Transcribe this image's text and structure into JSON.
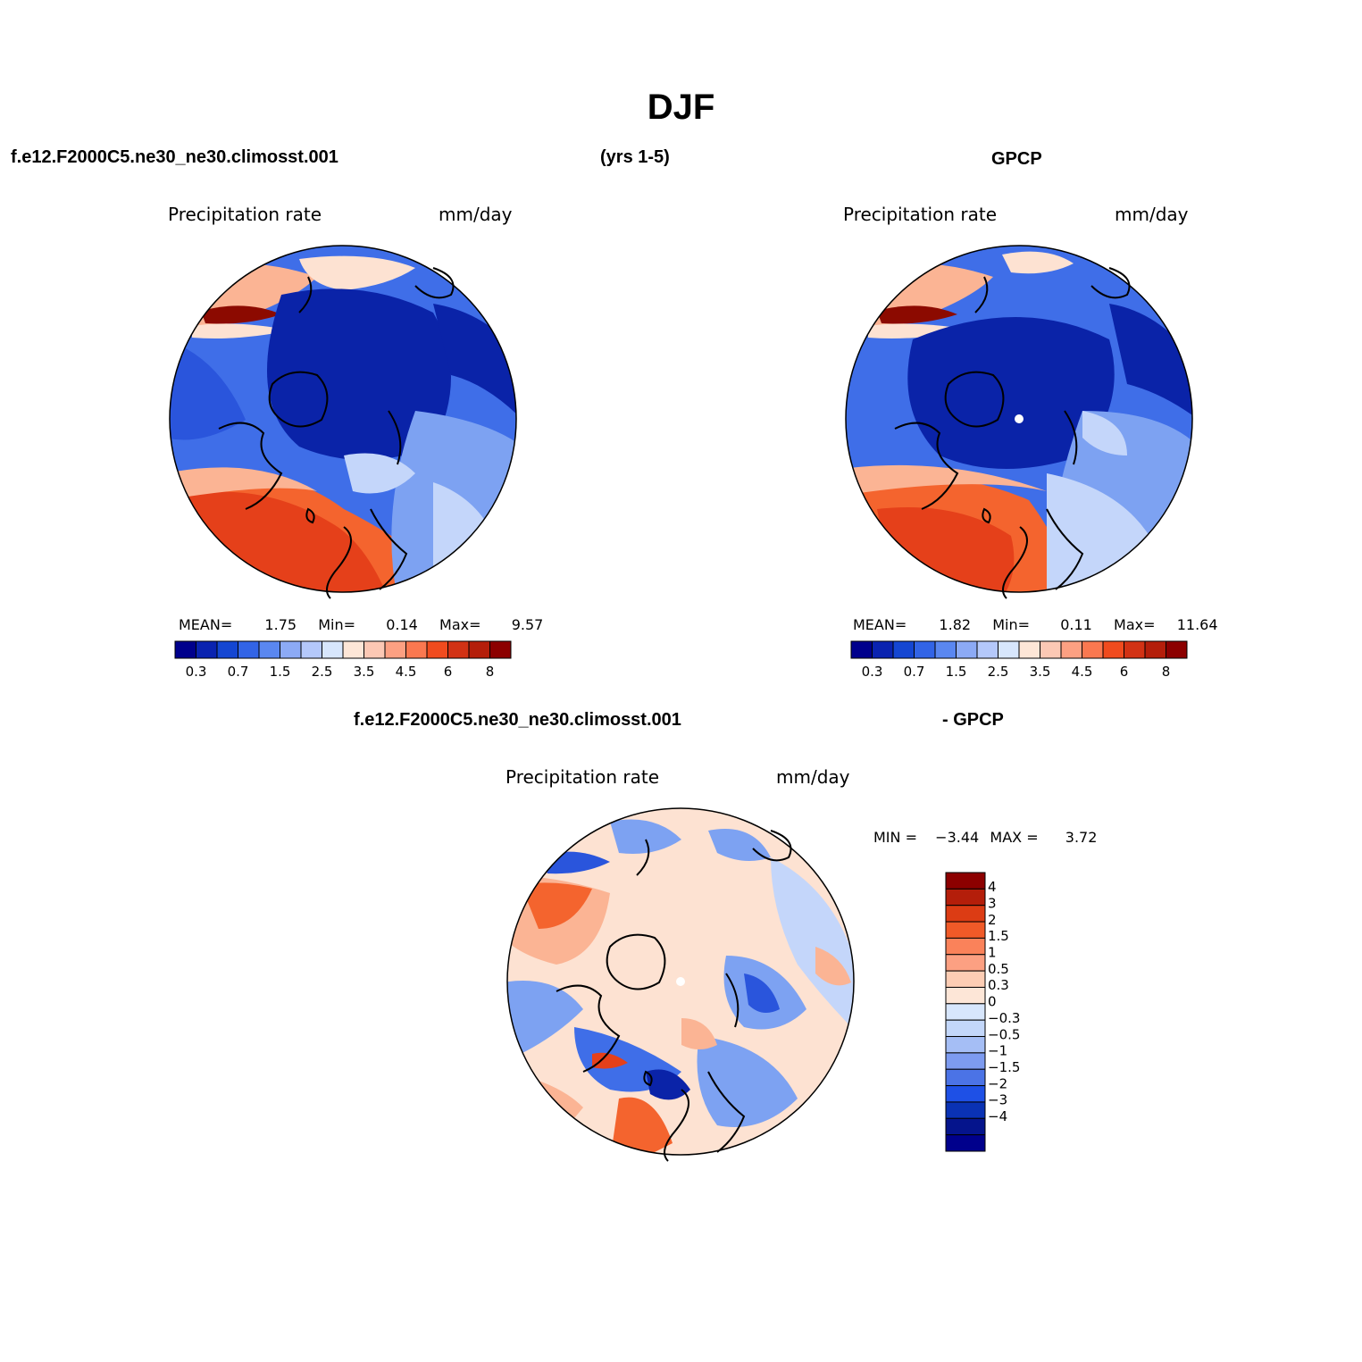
{
  "title": "DJF",
  "header": {
    "case_name": "f.e12.F2000C5.ne30_ne30.climosst.001",
    "years": "(yrs 1-5)",
    "obs_name": "GPCP"
  },
  "panels": [
    {
      "id": "model",
      "variable": "Precipitation rate",
      "units": "mm/day",
      "stats": {
        "mean_label": "MEAN=",
        "mean": "1.75",
        "min_label": "Min=",
        "min": "0.14",
        "max_label": "Max=",
        "max": "9.57"
      }
    },
    {
      "id": "obs",
      "variable": "Precipitation rate",
      "units": "mm/day",
      "stats": {
        "mean_label": "MEAN=",
        "mean": "1.82",
        "min_label": "Min=",
        "min": "0.11",
        "max_label": "Max=",
        "max": "11.64"
      }
    }
  ],
  "colorbar_abs": {
    "colors": [
      "#00008c",
      "#0a23b0",
      "#1446d2",
      "#3264e6",
      "#5a87f0",
      "#8caaf5",
      "#b4c8fa",
      "#d7e6fc",
      "#fde6d7",
      "#fcc8b4",
      "#fca082",
      "#fa7850",
      "#f04b1e",
      "#d23214",
      "#b41e0a",
      "#8c0000"
    ],
    "tick_labels": [
      "0.3",
      "0.7",
      "1.5",
      "2.5",
      "3.5",
      "4.5",
      "6",
      "8"
    ]
  },
  "diff_panel": {
    "case_name": "f.e12.F2000C5.ne30_ne30.climosst.001",
    "obs_suffix": "- GPCP",
    "variable": "Precipitation rate",
    "units": "mm/day",
    "min_label": "MIN =",
    "min": "−3.44",
    "max_label": "MAX =",
    "max": "3.72"
  },
  "colorbar_diff": {
    "colors": [
      "#8c0000",
      "#b41e0a",
      "#dc3c14",
      "#f05a28",
      "#fa825a",
      "#fca082",
      "#fdcdb4",
      "#fde6d7",
      "#d7e6fc",
      "#c3d7fa",
      "#a5bef5",
      "#7d9bf0",
      "#4b73e6",
      "#1e50e6",
      "#0a32b4",
      "#05148c",
      "#00008c"
    ],
    "tick_labels": [
      "4",
      "3",
      "2",
      "1.5",
      "1",
      "0.5",
      "0.3",
      "0",
      "−0.3",
      "−0.5",
      "−1",
      "−1.5",
      "−2",
      "−3",
      "−4"
    ]
  },
  "map_palette": {
    "deep_blue": "#0a23a8",
    "blue": "#2a55dc",
    "mid_blue": "#3f6ee8",
    "light_blue": "#7da2f2",
    "pale_blue": "#c4d6fa",
    "pale_peach": "#fde2d2",
    "peach": "#fbb494",
    "orange": "#f4642e",
    "red_orange": "#e5401a",
    "dark_red": "#8c0a00"
  }
}
